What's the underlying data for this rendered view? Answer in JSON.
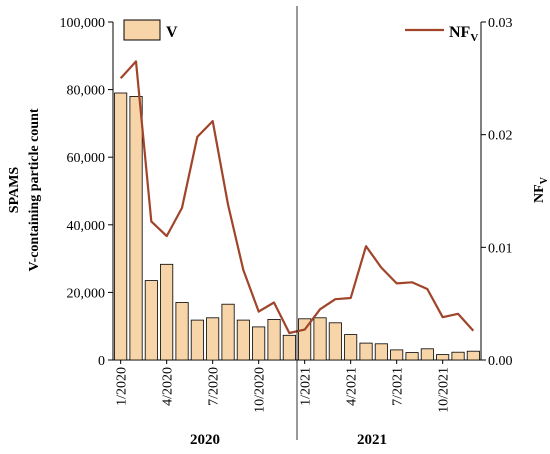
{
  "chart_data": {
    "type": "bar+line",
    "categories": [
      "1/2020",
      "2/2020",
      "3/2020",
      "4/2020",
      "5/2020",
      "6/2020",
      "7/2020",
      "8/2020",
      "9/2020",
      "10/2020",
      "11/2020",
      "12/2020",
      "1/2021",
      "2/2021",
      "3/2021",
      "4/2021",
      "5/2021",
      "6/2021",
      "7/2021",
      "8/2021",
      "9/2021",
      "10/2021",
      "11/2021",
      "12/2021"
    ],
    "x_tick_labels": [
      "1/2020",
      "4/2020",
      "7/2020",
      "10/2020",
      "1/2021",
      "4/2021",
      "7/2021",
      "10/2021"
    ],
    "x_tick_indices": [
      0,
      3,
      6,
      9,
      12,
      15,
      18,
      21
    ],
    "year_labels": [
      "2020",
      "2021"
    ],
    "year_divider_after_index": 11,
    "series": [
      {
        "name": "V",
        "type": "bar",
        "axis": "left",
        "color": "#f8d5a8",
        "values": [
          79000,
          78000,
          23500,
          28300,
          17000,
          11800,
          12500,
          16500,
          11800,
          9800,
          12000,
          7300,
          12200,
          12500,
          11000,
          7500,
          5000,
          4800,
          3000,
          2200,
          3300,
          1600,
          2300,
          2600
        ]
      },
      {
        "name": "NF",
        "name_subscript": "V",
        "type": "line",
        "axis": "right",
        "color": "#a0442a",
        "values": [
          0.025,
          0.0265,
          0.0123,
          0.011,
          0.0135,
          0.0198,
          0.0212,
          0.0138,
          0.008,
          0.0043,
          0.0051,
          0.0024,
          0.0027,
          0.0045,
          0.0054,
          0.0055,
          0.0101,
          0.0082,
          0.0068,
          0.0069,
          0.0063,
          0.0038,
          0.0041,
          0.0026
        ]
      }
    ],
    "y_left": {
      "label_line1": "SPAMS",
      "label_line2": "V-containing particle count",
      "ylim": [
        0,
        100000
      ],
      "ticks": [
        "0",
        "20,000",
        "40,000",
        "60,000",
        "80,000",
        "100,000"
      ],
      "tick_values": [
        0,
        20000,
        40000,
        60000,
        80000,
        100000
      ]
    },
    "y_right": {
      "label": "NF",
      "label_subscript": "V",
      "ylim": [
        0,
        0.03
      ],
      "ticks": [
        "0.00",
        "0.01",
        "0.02",
        "0.03"
      ],
      "tick_values": [
        0,
        0.01,
        0.02,
        0.03
      ]
    },
    "legend": {
      "bar_label": "V",
      "line_label": "NF",
      "line_label_subscript": "V",
      "bar_placement": "top-left",
      "line_placement": "top-right"
    },
    "grid": false
  }
}
